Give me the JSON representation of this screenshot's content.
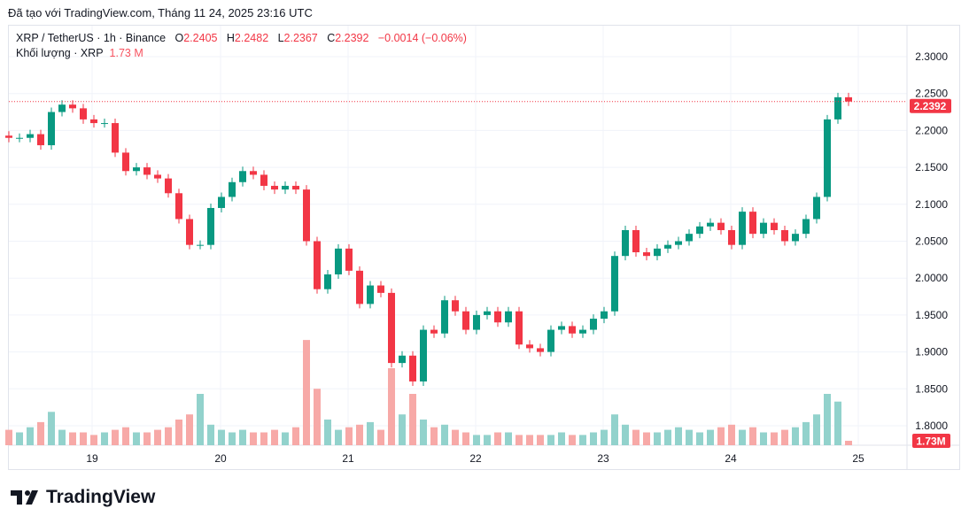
{
  "caption": "Đã tạo với TradingView.com, Tháng 11 24, 2025 23:16 UTC",
  "legend": {
    "symbol": "XRP / TetherUS · 1h · Binance",
    "o_label": "O",
    "o": "2.2405",
    "h_label": "H",
    "h": "2.2482",
    "l_label": "L",
    "l": "2.2367",
    "c_label": "C",
    "c": "2.2392",
    "change": "−0.0014 (−0.06%)",
    "volume_label": "Khối lượng · XRP",
    "volume": "1.73 M"
  },
  "logo": "TradingView",
  "colors": {
    "up": "#089981",
    "down": "#f23645",
    "up_vol": "#92d2cc",
    "down_vol": "#f7a9a7"
  },
  "chart_data": {
    "type": "candlestick",
    "ylim": [
      1.76,
      2.33
    ],
    "y_ticks": [
      "2.3000",
      "2.2500",
      "2.2000",
      "2.1500",
      "2.1000",
      "2.0500",
      "2.0000",
      "1.9500",
      "1.9000",
      "1.8500",
      "1.8000"
    ],
    "x_ticks": [
      "19",
      "20",
      "21",
      "22",
      "23",
      "24",
      "25"
    ],
    "last_price": "2.2392",
    "last_volume": "1.73M",
    "closes": [
      2.19,
      2.19,
      2.195,
      2.18,
      2.225,
      2.235,
      2.23,
      2.215,
      2.21,
      2.21,
      2.17,
      2.145,
      2.15,
      2.14,
      2.135,
      2.115,
      2.08,
      2.045,
      2.045,
      2.095,
      2.11,
      2.13,
      2.145,
      2.14,
      2.125,
      2.12,
      2.125,
      2.12,
      2.05,
      1.985,
      2.005,
      2.04,
      2.01,
      1.965,
      1.99,
      1.98,
      1.885,
      1.895,
      1.86,
      1.93,
      1.925,
      1.97,
      1.955,
      1.93,
      1.95,
      1.955,
      1.94,
      1.955,
      1.91,
      1.905,
      1.9,
      1.93,
      1.935,
      1.925,
      1.93,
      1.945,
      1.955,
      2.03,
      2.065,
      2.035,
      2.03,
      2.04,
      2.045,
      2.05,
      2.06,
      2.07,
      2.075,
      2.065,
      2.045,
      2.09,
      2.06,
      2.075,
      2.065,
      2.05,
      2.06,
      2.08,
      2.11,
      2.215,
      2.245,
      2.2392
    ],
    "volumes_m": [
      6,
      5,
      7,
      9,
      13,
      6,
      5,
      5,
      4,
      5,
      6,
      7,
      5,
      5,
      6,
      7,
      10,
      12,
      20,
      8,
      6,
      5,
      6,
      5,
      5,
      6,
      5,
      7,
      41,
      22,
      10,
      6,
      7,
      8,
      9,
      6,
      30,
      12,
      20,
      10,
      7,
      8,
      6,
      5,
      4,
      4,
      5,
      5,
      4,
      4,
      4,
      4,
      5,
      4,
      4,
      5,
      6,
      12,
      8,
      6,
      5,
      5,
      6,
      7,
      6,
      5,
      6,
      7,
      8,
      6,
      7,
      5,
      5,
      6,
      7,
      9,
      12,
      20,
      17,
      1.73
    ]
  }
}
